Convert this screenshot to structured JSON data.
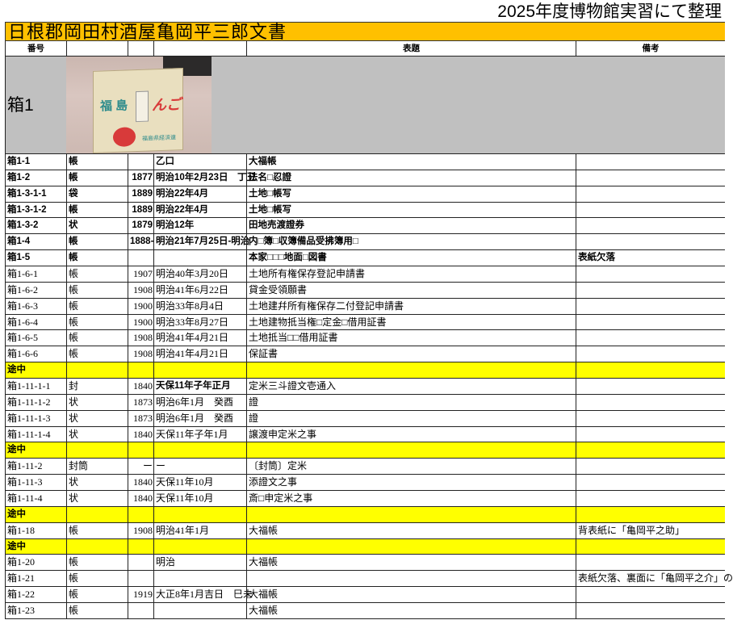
{
  "note": "2025年度博物館実習にて整理",
  "title": "日根郡岡田村酒屋亀岡平三郎文書",
  "headers": [
    "番号",
    "",
    "",
    "",
    "表題",
    "備考"
  ],
  "box": {
    "label": "箱1",
    "photo": "photo of cardboard box (福島りんご 福島県経済連)"
  },
  "colors": {
    "title_bg": "#FFC000",
    "box_bg": "#C0C0C0",
    "in_progress_bg": "#FFFF00"
  },
  "rows": [
    {
      "style": "bold",
      "no": "箱1-1",
      "type": "帳",
      "year": "",
      "date": "乙口",
      "title": "大福帳",
      "remark": ""
    },
    {
      "style": "bold",
      "no": "箱1-2",
      "type": "帳",
      "year": "1877",
      "date": "明治10年2月23日　丁丑",
      "title": "法名□忍證",
      "remark": ""
    },
    {
      "style": "bold",
      "no": "箱1-3-1-1",
      "type": "袋",
      "year": "1889",
      "date": "明治22年4月",
      "title": "土地□帳写",
      "remark": ""
    },
    {
      "style": "bold",
      "no": "箱1-3-1-2",
      "type": "帳",
      "year": "1889",
      "date": "明治22年4月",
      "title": "土地□帳写",
      "remark": ""
    },
    {
      "style": "bold",
      "no": "箱1-3-2",
      "type": "状",
      "year": "1879",
      "date": "明治12年",
      "title": "田地売渡證券",
      "remark": ""
    },
    {
      "style": "bold",
      "no": "箱1-4",
      "type": "帳",
      "year": "1888-",
      "date": "明治21年7月25日-明治",
      "title": "内□簿□収簿備品受拂簿用□",
      "remark": ""
    },
    {
      "style": "bold",
      "no": "箱1-5",
      "type": "帳",
      "year": "",
      "date": "",
      "title": "本家□□□地面□図書",
      "remark": "表紙欠落"
    },
    {
      "style": "serif",
      "no": "箱1-6-1",
      "type": "帳",
      "year": "1907",
      "date": "明治40年3月20日",
      "title": "土地所有権保存登記申請書",
      "remark": ""
    },
    {
      "style": "serif",
      "no": "箱1-6-2",
      "type": "帳",
      "year": "1908",
      "date": "明治41年6月22日",
      "title": "貸金受領願書",
      "remark": ""
    },
    {
      "style": "serif",
      "no": "箱1-6-3",
      "type": "帳",
      "year": "1900",
      "date": "明治33年8月4日",
      "title": "土地建幷所有権保存二付登記申請書",
      "remark": ""
    },
    {
      "style": "serif",
      "no": "箱1-6-4",
      "type": "帳",
      "year": "1900",
      "date": "明治33年8月27日",
      "title": "土地建物抵当権□定金□借用証書",
      "remark": ""
    },
    {
      "style": "serif",
      "no": "箱1-6-5",
      "type": "帳",
      "year": "1908",
      "date": "明治41年4月21日",
      "title": "土地抵当□□借用証書",
      "remark": ""
    },
    {
      "style": "serif",
      "no": "箱1-6-6",
      "type": "帳",
      "year": "1908",
      "date": "明治41年4月21日",
      "title": "保証書",
      "remark": ""
    },
    {
      "style": "yellow",
      "no": "途中",
      "type": "",
      "year": "",
      "date": "",
      "title": "",
      "remark": ""
    },
    {
      "style": "serif",
      "no": "箱1-11-1-1",
      "type": "封",
      "year": "1840",
      "date": "天保11年子年正月",
      "date_bold": true,
      "title": "定米三斗證文壱通入",
      "remark": ""
    },
    {
      "style": "serif",
      "no": "箱1-11-1-2",
      "type": "状",
      "year": "1873",
      "date": "明治6年1月　癸酉",
      "title": "證",
      "remark": ""
    },
    {
      "style": "serif",
      "no": "箱1-11-1-3",
      "type": "状",
      "year": "1873",
      "date": "明治6年1月　癸酉",
      "title": "證",
      "remark": ""
    },
    {
      "style": "serif",
      "no": "箱1-11-1-4",
      "type": "状",
      "year": "1840",
      "date": "天保11年子年1月",
      "title": "譲渡申定米之事",
      "remark": ""
    },
    {
      "style": "yellow",
      "no": "途中",
      "type": "",
      "year": "",
      "date": "",
      "title": "",
      "remark": ""
    },
    {
      "style": "serif",
      "no": "箱1-11-2",
      "type": "封筒",
      "year": "ー",
      "date": "ー",
      "title": "〔封筒〕定米",
      "remark": ""
    },
    {
      "style": "serif",
      "no": "箱1-11-3",
      "type": "状",
      "year": "1840",
      "date": "天保11年10月",
      "title": "添證文之事",
      "remark": ""
    },
    {
      "style": "serif",
      "no": "箱1-11-4",
      "type": "状",
      "year": "1840",
      "date": "天保11年10月",
      "title": "斎□申定米之事",
      "remark": ""
    },
    {
      "style": "yellow",
      "no": "途中",
      "type": "",
      "year": "",
      "date": "",
      "title": "",
      "remark": ""
    },
    {
      "style": "serif",
      "no": "箱1-18",
      "type": "帳",
      "year": "1908",
      "date": "明治41年1月",
      "title": "大福帳",
      "remark": "背表紙に「亀岡平之助」"
    },
    {
      "style": "yellow",
      "no": "途中",
      "type": "",
      "year": "",
      "date": "",
      "title": "",
      "remark": ""
    },
    {
      "style": "serif",
      "no": "箱1-20",
      "type": "帳",
      "year": "",
      "date": "明治",
      "title": "大福帳",
      "remark": ""
    },
    {
      "style": "serif",
      "no": "箱1-21",
      "type": "帳",
      "year": "",
      "date": "",
      "title": "",
      "remark": "表紙欠落、裏面に「亀岡平之介」の"
    },
    {
      "style": "serif",
      "no": "箱1-22",
      "type": "帳",
      "year": "1919",
      "date": "大正8年1月吉日　巳未",
      "title": "大福帳",
      "remark": ""
    },
    {
      "style": "serif",
      "no": "箱1-23",
      "type": "帳",
      "year": "",
      "date": "",
      "title": "大福帳",
      "remark": ""
    }
  ]
}
